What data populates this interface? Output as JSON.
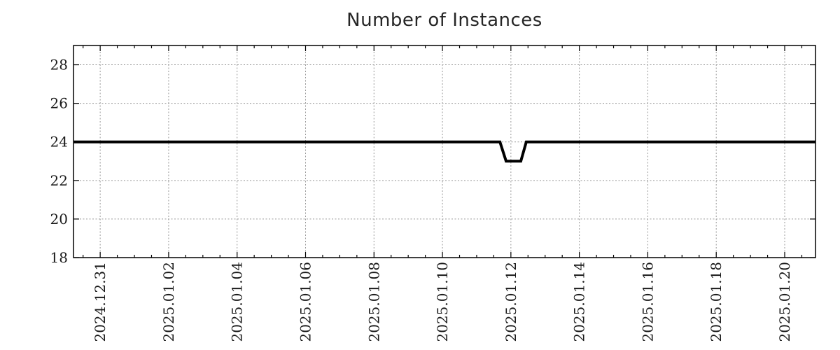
{
  "chart_data": {
    "type": "line",
    "title": "Number of Instances",
    "xlabel": "",
    "ylabel": "",
    "x_axis": {
      "tick_labels": [
        "2024.12.31",
        "2025.01.02",
        "2025.01.04",
        "2025.01.06",
        "2025.01.08",
        "2025.01.10",
        "2025.01.12",
        "2025.01.14",
        "2025.01.16",
        "2025.01.18",
        "2025.01.20"
      ],
      "tick_day_offsets": [
        0,
        2,
        4,
        6,
        8,
        10,
        12,
        14,
        16,
        18,
        20
      ],
      "range_days": [
        -0.78,
        20.9
      ],
      "minor_tick_step_days": 0.5,
      "label_rotation_deg": -90
    },
    "y_axis": {
      "tick_labels": [
        "18",
        "20",
        "22",
        "24",
        "26",
        "28"
      ],
      "ticks": [
        18,
        20,
        22,
        24,
        26,
        28
      ],
      "range": [
        18,
        29
      ]
    },
    "series": [
      {
        "name": "Number of Instances",
        "color": "#000000",
        "line_width": 4,
        "points": [
          {
            "day": -0.78,
            "value": 24
          },
          {
            "day": 11.68,
            "value": 24
          },
          {
            "day": 11.86,
            "value": 23
          },
          {
            "day": 12.29,
            "value": 23
          },
          {
            "day": 12.45,
            "value": 24
          },
          {
            "day": 20.9,
            "value": 24
          }
        ]
      }
    ],
    "grid": {
      "show": true,
      "color": "#999999",
      "dash": "2,2.5"
    },
    "legend": {
      "position": "none"
    },
    "border_color": "#000000",
    "tick_color": "#000000",
    "background_color": "#ffffff"
  }
}
